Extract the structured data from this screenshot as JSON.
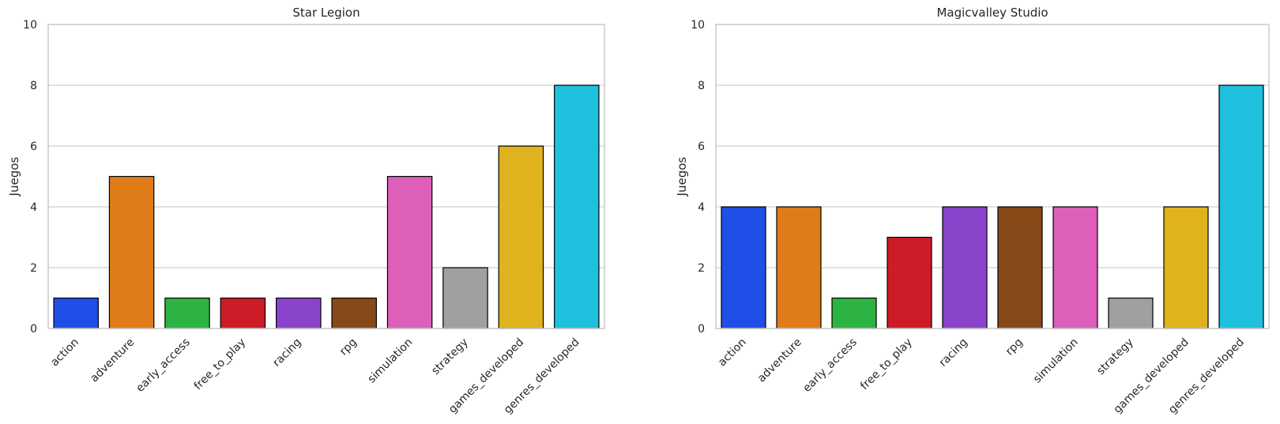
{
  "chart_data": [
    {
      "type": "bar",
      "title": "Star Legion",
      "xlabel": "",
      "ylabel": "Juegos",
      "ylim": [
        0,
        10
      ],
      "yticks": [
        0,
        2,
        4,
        6,
        8,
        10
      ],
      "grid": "horizontal",
      "categories": [
        "action",
        "adventure",
        "early_access",
        "free_to_play",
        "racing",
        "rpg",
        "simulation",
        "strategy",
        "games_developed",
        "genres_developed"
      ],
      "values": [
        1,
        5,
        1,
        1,
        1,
        1,
        5,
        2,
        6,
        8
      ]
    },
    {
      "type": "bar",
      "title": "Magicvalley Studio",
      "xlabel": "",
      "ylabel": "Juegos",
      "ylim": [
        0,
        10
      ],
      "yticks": [
        0,
        2,
        4,
        6,
        8,
        10
      ],
      "grid": "horizontal",
      "categories": [
        "action",
        "adventure",
        "early_access",
        "free_to_play",
        "racing",
        "rpg",
        "simulation",
        "strategy",
        "games_developed",
        "genres_developed"
      ],
      "values": [
        4,
        4,
        1,
        3,
        4,
        4,
        4,
        1,
        4,
        8
      ]
    }
  ],
  "colors": [
    "#1f4fe6",
    "#e07b1a",
    "#2db343",
    "#cc1c27",
    "#8a44cc",
    "#884918",
    "#dd5fba",
    "#a0a0a0",
    "#e0b31e",
    "#1fc0de"
  ]
}
